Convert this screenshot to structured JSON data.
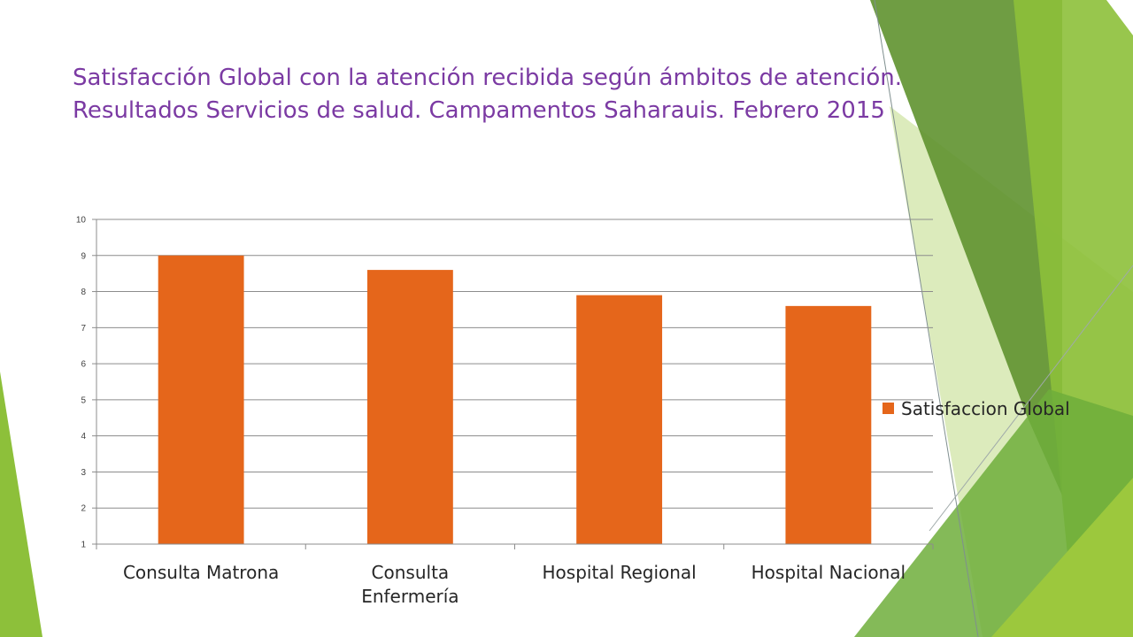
{
  "slide": {
    "title_line1": "Satisfacción Global con la atención recibida según ámbitos de atención.",
    "title_line2": "Resultados Servicios de salud. Campamentos Saharauis. Febrero 2015",
    "colors": {
      "title": "#7b3aa3",
      "bar": "#e5661b",
      "deco_dark": "#5f922f",
      "deco_mid": "#8dc03a",
      "deco_light": "#d6e8b0"
    }
  },
  "chart_data": {
    "type": "bar",
    "title": "",
    "xlabel": "",
    "ylabel": "",
    "categories": [
      [
        "Consulta Matrona"
      ],
      [
        "Consulta",
        "Enfermería"
      ],
      [
        "Hospital Regional"
      ],
      [
        "Hospital Nacional"
      ]
    ],
    "series": [
      {
        "name": "Satisfaccion Global",
        "color": "#e5661b",
        "values": [
          9.0,
          8.6,
          7.9,
          7.6
        ]
      }
    ],
    "ylim": [
      1,
      10
    ],
    "yticks": [
      1,
      2,
      3,
      4,
      5,
      6,
      7,
      8,
      9,
      10
    ],
    "grid": true,
    "legend": "right"
  }
}
